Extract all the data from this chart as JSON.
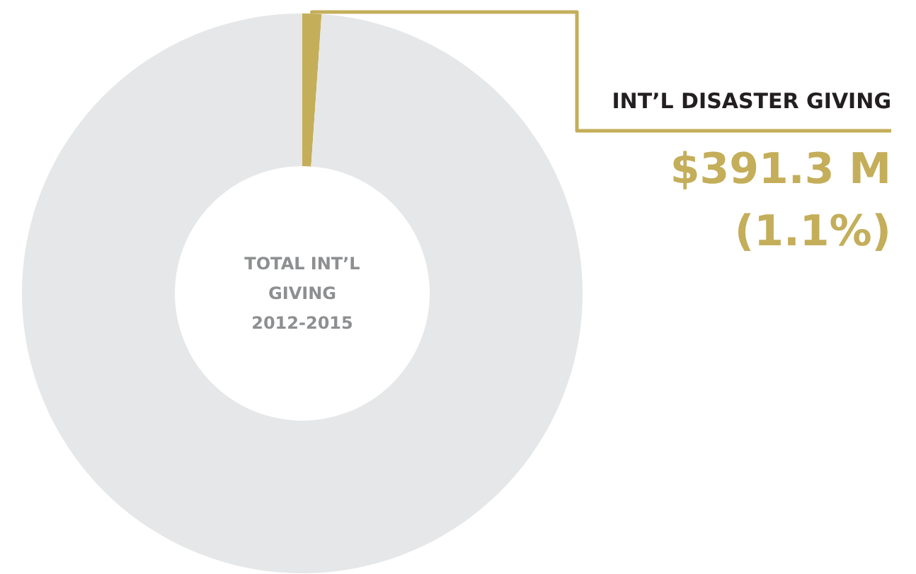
{
  "chart_data": {
    "type": "donut",
    "title": "TOTAL INT’L\nGIVING\n2012-2015",
    "categories": [
      "INT’L DISASTER GIVING",
      null
    ],
    "values": [
      1.1,
      98.9
    ],
    "colors": [
      "#c4ae5a",
      "#e6e7e8"
    ],
    "value_labels": [
      "$391.3 M\n(1.1%)",
      null
    ]
  }
}
